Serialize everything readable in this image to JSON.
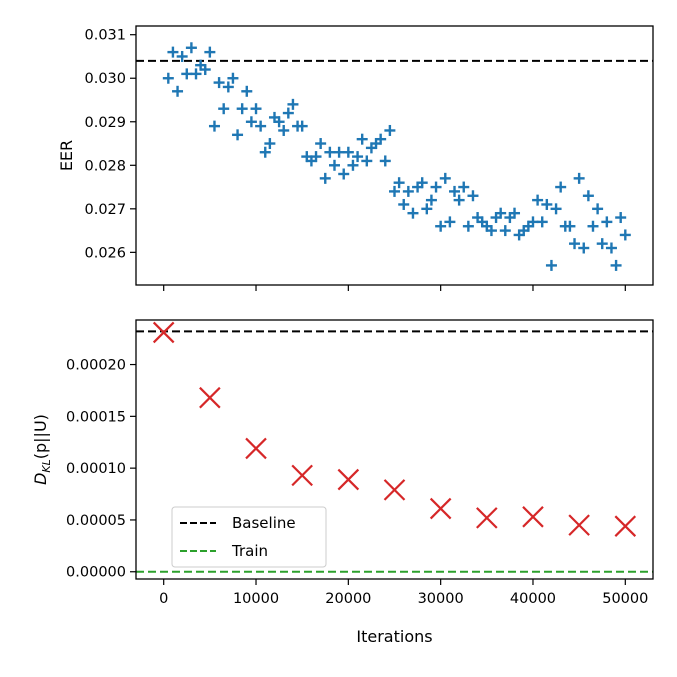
{
  "chart_data": [
    {
      "type": "scatter",
      "panel": "top",
      "ylabel": "EER",
      "xlim": [
        -3000,
        53000
      ],
      "ylim": [
        0.02525,
        0.0312
      ],
      "yticks": [
        0.026,
        0.027,
        0.028,
        0.029,
        0.03,
        0.031
      ],
      "ytick_labels": [
        "0.026",
        "0.027",
        "0.028",
        "0.029",
        "0.030",
        "0.031"
      ],
      "xticks": [
        0,
        10000,
        20000,
        30000,
        40000,
        50000
      ],
      "xtick_labels_visible": false,
      "grid": false,
      "baseline": 0.0304,
      "baseline_color": "#000000",
      "marker": "plus",
      "series": [
        {
          "color": "#1f77b4",
          "x": [
            500,
            1000,
            1500,
            2000,
            2500,
            3000,
            3500,
            4000,
            4500,
            5000,
            5500,
            6000,
            6500,
            7000,
            7500,
            8000,
            8500,
            9000,
            9500,
            10000,
            10500,
            11000,
            11500,
            12000,
            12500,
            13000,
            13500,
            14000,
            14500,
            15000,
            15500,
            16000,
            16500,
            17000,
            17500,
            18000,
            18500,
            19000,
            19500,
            20000,
            20500,
            21000,
            21500,
            22000,
            22500,
            23000,
            23500,
            24000,
            24500,
            25000,
            25500,
            26000,
            26500,
            27000,
            27500,
            28000,
            28500,
            29000,
            29500,
            30000,
            30500,
            31000,
            31500,
            32000,
            32500,
            33000,
            33500,
            34000,
            34500,
            35000,
            35500,
            36000,
            36500,
            37000,
            37500,
            38000,
            38500,
            39000,
            39500,
            40000,
            40500,
            41000,
            41500,
            42000,
            42500,
            43000,
            43500,
            44000,
            44500,
            45000,
            45500,
            46000,
            46500,
            47000,
            47500,
            48000,
            48500,
            49000,
            49500,
            50000
          ],
          "y": [
            0.03,
            0.0306,
            0.0297,
            0.0305,
            0.0301,
            0.0307,
            0.0301,
            0.0303,
            0.0302,
            0.0306,
            0.0289,
            0.0299,
            0.0293,
            0.0298,
            0.03,
            0.0287,
            0.0293,
            0.0297,
            0.029,
            0.0293,
            0.0289,
            0.0283,
            0.0285,
            0.0291,
            0.029,
            0.0288,
            0.0292,
            0.0294,
            0.0289,
            0.0289,
            0.0282,
            0.0281,
            0.0282,
            0.0285,
            0.0277,
            0.0283,
            0.028,
            0.0283,
            0.0278,
            0.0283,
            0.028,
            0.0282,
            0.0286,
            0.0281,
            0.0284,
            0.0285,
            0.0286,
            0.0281,
            0.0288,
            0.0274,
            0.0276,
            0.0271,
            0.0274,
            0.0269,
            0.0275,
            0.0276,
            0.027,
            0.0272,
            0.0275,
            0.0266,
            0.0277,
            0.0267,
            0.0274,
            0.0272,
            0.0275,
            0.0266,
            0.0273,
            0.0268,
            0.0267,
            0.0266,
            0.0265,
            0.0268,
            0.0269,
            0.0265,
            0.0268,
            0.0269,
            0.0264,
            0.0265,
            0.0266,
            0.0267,
            0.0272,
            0.0267,
            0.0271,
            0.0257,
            0.027,
            0.0275,
            0.0266,
            0.0266,
            0.0262,
            0.0277,
            0.0261,
            0.0273,
            0.0266,
            0.027,
            0.0262,
            0.0267,
            0.0261,
            0.0257,
            0.0268,
            0.0264
          ]
        }
      ]
    },
    {
      "type": "scatter",
      "panel": "bottom",
      "xlabel": "Iterations",
      "ylabel_prefix": "D",
      "ylabel_sub": "KL",
      "ylabel_suffix": "(p||U)",
      "xlim": [
        -3000,
        53000
      ],
      "ylim": [
        -7e-06,
        0.000243
      ],
      "yticks": [
        0,
        5e-05,
        0.0001,
        0.00015,
        0.0002
      ],
      "ytick_labels": [
        "0.00000",
        "0.00005",
        "0.00010",
        "0.00015",
        "0.00020"
      ],
      "xticks": [
        0,
        10000,
        20000,
        30000,
        40000,
        50000
      ],
      "xtick_labels": [
        "0",
        "10000",
        "20000",
        "30000",
        "40000",
        "50000"
      ],
      "grid": false,
      "marker": "x",
      "series": [
        {
          "color": "#d62728",
          "x": [
            0,
            5000,
            10000,
            15000,
            20000,
            25000,
            30000,
            35000,
            40000,
            45000,
            50000
          ],
          "y": [
            0.000231,
            0.000168,
            0.000119,
            9.3e-05,
            8.9e-05,
            7.9e-05,
            6.1e-05,
            5.2e-05,
            5.3e-05,
            4.5e-05,
            4.4e-05
          ]
        }
      ],
      "reference_lines": [
        {
          "name": "Baseline",
          "value": 0.000232,
          "color": "#000000",
          "style": "dashed"
        },
        {
          "name": "Train",
          "value": 0.0,
          "color": "#2ca02c",
          "style": "dashed"
        }
      ],
      "legend": {
        "placement": "lower-left",
        "entries": [
          "Baseline",
          "Train"
        ]
      }
    }
  ]
}
